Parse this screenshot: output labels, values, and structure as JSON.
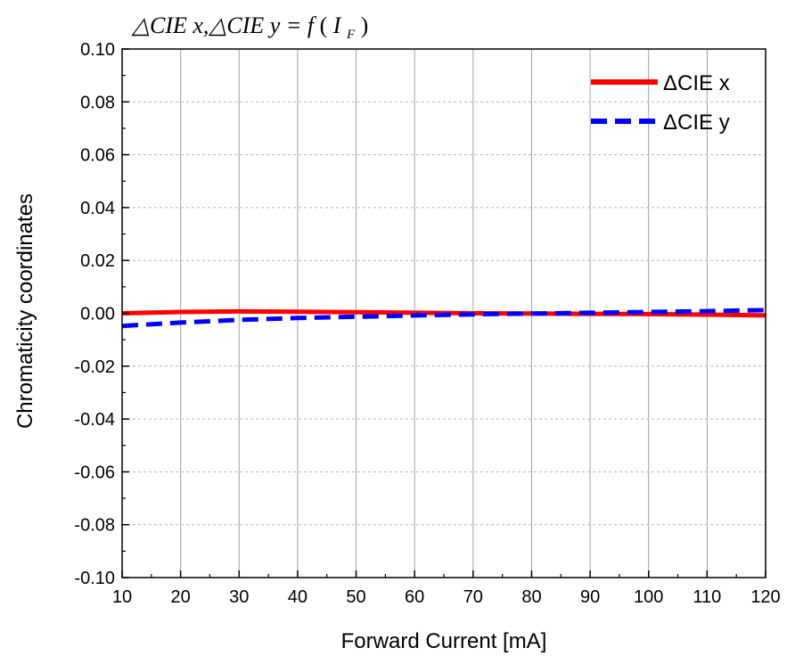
{
  "chart_data": {
    "type": "line",
    "title": "△CIE x,△CIE y = f(I_F)",
    "title_parts": {
      "main": "△CIE x,△CIE y = f",
      "paren_open": "(",
      "var": "I",
      "sub": "F",
      "paren_close": ")"
    },
    "xlabel": "Forward Current [mA]",
    "ylabel": "Chromaticity coordinates",
    "xlim": [
      10,
      120
    ],
    "ylim": [
      -0.1,
      0.1
    ],
    "x_ticks": [
      10,
      20,
      30,
      40,
      50,
      60,
      70,
      80,
      90,
      100,
      110,
      120
    ],
    "x_tick_labels": [
      "10",
      "20",
      "30",
      "40",
      "50",
      "60",
      "70",
      "80",
      "90",
      "100",
      "110",
      "120"
    ],
    "y_ticks": [
      -0.1,
      -0.08,
      -0.06,
      -0.04,
      -0.02,
      0.0,
      0.02,
      0.04,
      0.06,
      0.08,
      0.1
    ],
    "y_tick_labels": [
      "-0.10",
      "-0.08",
      "-0.06",
      "-0.04",
      "-0.02",
      "0.00",
      "0.02",
      "0.04",
      "0.06",
      "0.08",
      "0.10"
    ],
    "grid": "vertical",
    "legend_position": "top-right",
    "x": [
      10,
      20,
      30,
      40,
      50,
      60,
      70,
      80,
      90,
      100,
      110,
      120
    ],
    "series": [
      {
        "name": "ΔCIE x",
        "color": "#ff0000",
        "style": "solid",
        "values": [
          0.0,
          0.0005,
          0.0007,
          0.0006,
          0.0004,
          0.0002,
          0.0,
          -0.0001,
          -0.0002,
          -0.0003,
          -0.0005,
          -0.0008
        ]
      },
      {
        "name": "ΔCIE y",
        "color": "#0000ff",
        "style": "dashed",
        "values": [
          -0.0048,
          -0.0035,
          -0.0025,
          -0.0018,
          -0.0013,
          -0.0008,
          -0.0004,
          -0.0001,
          0.0002,
          0.0005,
          0.0008,
          0.0012
        ]
      }
    ]
  }
}
